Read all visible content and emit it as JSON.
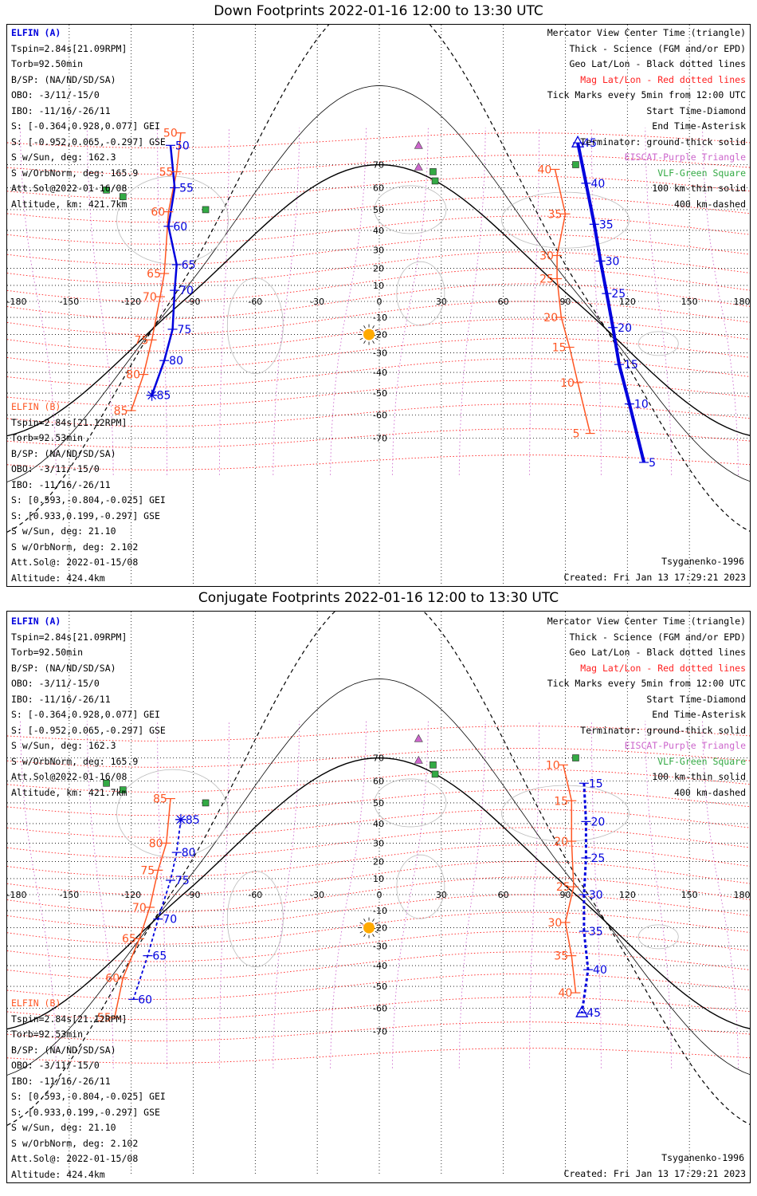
{
  "panels": [
    {
      "id": "down",
      "title": "Down Footprints 2022-01-16 12:00 to 13:30 UTC",
      "elfin_a": {
        "label": "ELFIN (A)",
        "lines": [
          "Tspin=2.84s[21.09RPM]",
          "Torb=92.50min",
          "B/SP: (NA/ND/SD/SA)",
          "OBO: -3/11/-15/0",
          "IBO: -11/16/-26/11",
          "S: [-0.364,0.928,0.077] GEI",
          "S: [-0.952,0.065,-0.297] GSE",
          "S w/Sun, deg: 162.3",
          "S w/OrbNorm, deg: 165.9",
          "Att.Sol@2022-01-16/08",
          "Altitude, km: 421.7km"
        ]
      },
      "elfin_b": {
        "label": "ELFIN (B)",
        "lines": [
          "Tspin=2.84s[21.12RPM]",
          "Torb=92.53min",
          "B/SP: (NA/ND/SD/SA)",
          "OBO: -3/11/-15/0",
          "IBO: -11/16/-26/11",
          "S: [0.593,-0.804,-0.025] GEI",
          "S: [0.933,0.199,-0.297] GSE",
          "S w/Sun, deg: 21.10",
          "S w/OrbNorm, deg: 2.102",
          "Att.Sol@: 2022-01-15/08",
          "Altitude: 424.4km"
        ]
      },
      "legend": [
        "Mercator View Center Time (triangle)",
        "Thick - Science (FGM and/or EPD)",
        "Geo Lat/Lon - Black dotted lines",
        "Mag Lat/Lon - Red dotted lines",
        "Tick Marks every 5min from 12:00 UTC",
        "Start Time-Diamond",
        "End Time-Asterisk",
        "Terminator: ground-thick solid",
        "EISCAT-Purple Triangle",
        "VLF-Green Square",
        "100 km-thin solid",
        "400 km-dashed"
      ],
      "model": "Tsyganenko-1996",
      "created": "Created: Fri Jan 13 17:29:21 2023",
      "ticks_a": [
        {
          "t": "45",
          "lon": 96,
          "lat": 79
        },
        {
          "t": "40",
          "lon": 100,
          "lat": 62
        },
        {
          "t": "35",
          "lon": 104,
          "lat": 43
        },
        {
          "t": "30",
          "lon": 107,
          "lat": 24
        },
        {
          "t": "25",
          "lon": 110,
          "lat": 5
        },
        {
          "t": "20",
          "lon": 113,
          "lat": -16
        },
        {
          "t": "15",
          "lon": 116,
          "lat": -36
        },
        {
          "t": "10",
          "lon": 121,
          "lat": -55
        },
        {
          "t": "5",
          "lon": 128,
          "lat": -80
        }
      ],
      "ticks_b": [
        {
          "t": "50",
          "lon": -101,
          "lat": 78
        },
        {
          "t": "55",
          "lon": -99,
          "lat": 60
        },
        {
          "t": "60",
          "lon": -102,
          "lat": 42
        },
        {
          "t": "65",
          "lon": -98,
          "lat": 22
        },
        {
          "t": "70",
          "lon": -99,
          "lat": 7
        },
        {
          "t": "75",
          "lon": -100,
          "lat": -17
        },
        {
          "t": "80",
          "lon": -104,
          "lat": -34
        },
        {
          "t": "85",
          "lon": -110,
          "lat": -51
        }
      ],
      "ticks_a_mag": [
        {
          "t": "40",
          "lon": 85,
          "lat": 68
        },
        {
          "t": "35",
          "lon": 90,
          "lat": 48
        },
        {
          "t": "30",
          "lon": 86,
          "lat": 27
        },
        {
          "t": "25",
          "lon": 86,
          "lat": 14
        },
        {
          "t": "20",
          "lon": 88,
          "lat": -10
        },
        {
          "t": "15",
          "lon": 92,
          "lat": -27
        },
        {
          "t": "10",
          "lon": 96,
          "lat": -45
        },
        {
          "t": "5",
          "lon": 102,
          "lat": -68
        }
      ],
      "ticks_b_mag": [
        {
          "t": "50",
          "lon": -96,
          "lat": 83
        },
        {
          "t": "55",
          "lon": -98,
          "lat": 67
        },
        {
          "t": "60",
          "lon": -102,
          "lat": 49
        },
        {
          "t": "65",
          "lon": -104,
          "lat": 17
        },
        {
          "t": "70",
          "lon": -106,
          "lat": 3
        },
        {
          "t": "75",
          "lon": -110,
          "lat": -23
        },
        {
          "t": "80",
          "lon": -114,
          "lat": -41
        },
        {
          "t": "85",
          "lon": -120,
          "lat": -58
        }
      ]
    },
    {
      "id": "conjugate",
      "title": "Conjugate Footprints 2022-01-16 12:00 to 13:30 UTC",
      "elfin_a": {
        "label": "ELFIN (A)",
        "lines": [
          "Tspin=2.84s[21.09RPM]",
          "Torb=92.50min",
          "B/SP: (NA/ND/SD/SA)",
          "OBO: -3/11/-15/0",
          "IBO: -11/16/-26/11",
          "S: [-0.364,0.928,0.077] GEI",
          "S: [-0.952,0.065,-0.297] GSE",
          "S w/Sun, deg: 162.3",
          "S w/OrbNorm, deg: 165.9",
          "Att.Sol@2022-01-16/08",
          "Altitude, km: 421.7km"
        ]
      },
      "elfin_b": {
        "label": "ELFIN (B)",
        "lines": [
          "Tspin=2.84s[21.12RPM]",
          "Torb=92.53min",
          "B/SP: (NA/ND/SD/SA)",
          "OBO: -3/11/-15/0",
          "IBO: -11/16/-26/11",
          "S: [0.593,-0.804,-0.025] GEI",
          "S: [0.933,0.199,-0.297] GSE",
          "S w/Sun, deg: 21.10",
          "S w/OrbNorm, deg: 2.102",
          "Att.Sol@: 2022-01-15/08",
          "Altitude: 424.4km"
        ]
      },
      "legend": [
        "Mercator View Center Time (triangle)",
        "Thick - Science (FGM and/or EPD)",
        "Geo Lat/Lon - Black dotted lines",
        "Mag Lat/Lon - Red dotted lines",
        "Tick Marks every 5min from 12:00 UTC",
        "Start Time-Diamond",
        "End Time-Asterisk",
        "Terminator: ground-thick solid",
        "EISCAT-Purple Triangle",
        "VLF-Green Square",
        "100 km-thin solid",
        "400 km-dashed"
      ],
      "model": "Tsyganenko-1996",
      "created": "Created: Fri Jan 13 17:29:21 2023",
      "ticks_a": [
        {
          "t": "15",
          "lon": 99,
          "lat": 59
        },
        {
          "t": "20",
          "lon": 100,
          "lat": 41
        },
        {
          "t": "25",
          "lon": 100,
          "lat": 22
        },
        {
          "t": "30",
          "lon": 99,
          "lat": 0
        },
        {
          "t": "35",
          "lon": 99,
          "lat": -22
        },
        {
          "t": "40",
          "lon": 101,
          "lat": -42
        },
        {
          "t": "45",
          "lon": 98,
          "lat": -62
        }
      ],
      "ticks_b": [
        {
          "t": "85",
          "lon": -96,
          "lat": 42
        },
        {
          "t": "80",
          "lon": -98,
          "lat": 25
        },
        {
          "t": "75",
          "lon": -101,
          "lat": 9
        },
        {
          "t": "70",
          "lon": -107,
          "lat": -15
        },
        {
          "t": "65",
          "lon": -112,
          "lat": -35
        },
        {
          "t": "60",
          "lon": -119,
          "lat": -56
        }
      ],
      "ticks_a_mag": [
        {
          "t": "10",
          "lon": 89,
          "lat": 67
        },
        {
          "t": "15",
          "lon": 93,
          "lat": 51
        },
        {
          "t": "20",
          "lon": 93,
          "lat": 31
        },
        {
          "t": "25",
          "lon": 94,
          "lat": 5
        },
        {
          "t": "30",
          "lon": 90,
          "lat": -17
        },
        {
          "t": "35",
          "lon": 93,
          "lat": -35
        },
        {
          "t": "40",
          "lon": 95,
          "lat": -53
        }
      ],
      "ticks_b_mag": [
        {
          "t": "85",
          "lon": -101,
          "lat": 52
        },
        {
          "t": "80",
          "lon": -103,
          "lat": 30
        },
        {
          "t": "75",
          "lon": -107,
          "lat": 15
        },
        {
          "t": "70",
          "lon": -111,
          "lat": -8
        },
        {
          "t": "65",
          "lon": -116,
          "lat": -26
        },
        {
          "t": "60",
          "lon": -124,
          "lat": -46
        },
        {
          "t": "55",
          "lon": -128,
          "lat": -64
        }
      ]
    }
  ],
  "axis": {
    "lon_ticks": [
      "-180",
      "-150",
      "-120",
      "-90",
      "-60",
      "-30",
      "0",
      "30",
      "60",
      "90",
      "120",
      "150",
      "180"
    ],
    "lat_ticks": [
      "70",
      "60",
      "50",
      "40",
      "30",
      "20",
      "10",
      "0",
      "-10",
      "-20",
      "-30",
      "-40",
      "-50",
      "-60",
      "-70"
    ]
  },
  "colors": {
    "elfin_a": "#0000dd",
    "elfin_b": "#ff5522",
    "mag_grid": "#ff2020",
    "geo_grid": "#000000",
    "eiscat": "#cc66cc",
    "vlf": "#33aa44",
    "sun": "#ffaa00"
  },
  "sites": {
    "eiscat": [
      {
        "lon": 19,
        "lat": 78
      },
      {
        "lon": 19,
        "lat": 69
      }
    ],
    "vlf": [
      {
        "lon": 26,
        "lat": 67
      },
      {
        "lon": 27,
        "lat": 63
      },
      {
        "lon": -132,
        "lat": 59
      },
      {
        "lon": -124,
        "lat": 56
      },
      {
        "lon": -84,
        "lat": 50
      },
      {
        "lon": 95,
        "lat": 70
      }
    ]
  }
}
